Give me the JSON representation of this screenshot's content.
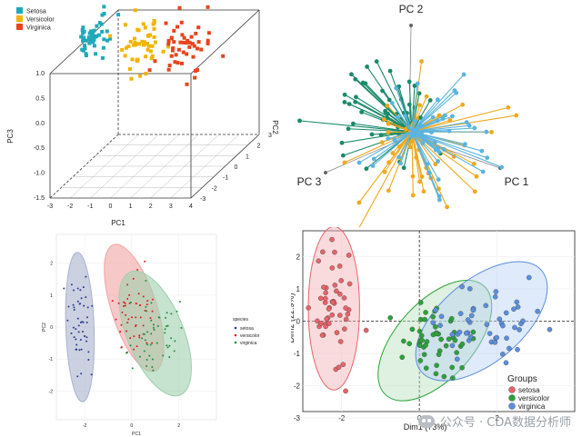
{
  "chart_data": [
    {
      "type": "scatter",
      "projection": "3d",
      "xlabel": "PC1",
      "ylabel": "PC2",
      "zlabel": "PC3",
      "x_ticks": [
        "-3",
        "-2",
        "-1",
        "0",
        "1",
        "2",
        "3",
        "4"
      ],
      "y_ticks": [
        "-3",
        "-2",
        "-1",
        "0",
        "1",
        "2",
        "3"
      ],
      "z_ticks": [
        "-1.5",
        "-1.0",
        "-0.5",
        "0.0",
        "0.5",
        "1.0"
      ],
      "xlim": [
        -3,
        4
      ],
      "ylim": [
        -3,
        3
      ],
      "zlim": [
        -1.5,
        1.0
      ],
      "legend": {
        "position": "top-left",
        "entries": [
          "Setosa",
          "Versicolor",
          "Virginica"
        ]
      },
      "colors": {
        "Setosa": "#1fa9b8",
        "Versicolor": "#f2b400",
        "Virginica": "#e8441d"
      },
      "groups": [
        {
          "name": "Setosa",
          "center": [
            -2.7,
            0.3,
            0.0
          ],
          "spread": [
            0.35,
            0.6,
            0.2
          ],
          "n": 50
        },
        {
          "name": "Versicolor",
          "center": [
            0.3,
            -0.6,
            0.1
          ],
          "spread": [
            0.5,
            0.5,
            0.25
          ],
          "n": 50
        },
        {
          "name": "Virginica",
          "center": [
            1.9,
            0.1,
            -0.2
          ],
          "spread": [
            0.6,
            0.5,
            0.3
          ],
          "n": 50
        }
      ]
    },
    {
      "type": "biplot-3d",
      "axis_labels": [
        "PC 1",
        "PC 2",
        "PC 3"
      ],
      "colors": {
        "Setosa": "#1a8a6a",
        "Versicolor": "#f0a81e",
        "Virginica": "#5ab4e0"
      },
      "groups": [
        {
          "name": "Setosa",
          "n": 50
        },
        {
          "name": "Versicolor",
          "n": 50
        },
        {
          "name": "Virginica",
          "n": 50
        }
      ]
    },
    {
      "type": "scatter",
      "xlabel": "PC1",
      "ylabel": "PC2",
      "x_ticks": [
        "-2",
        "0",
        "2"
      ],
      "y_ticks": [
        "-2",
        "-1",
        "0",
        "1",
        "2"
      ],
      "xlim": [
        -3.2,
        3.6
      ],
      "ylim": [
        -2.9,
        2.9
      ],
      "legend": {
        "title": "species",
        "position": "right",
        "entries": [
          "setosa",
          "versicolor",
          "virginica"
        ]
      },
      "colors": {
        "setosa": "#2b3a8f",
        "versicolor": "#d62020",
        "virginica": "#1f8f3a"
      },
      "ellipse_colors": {
        "setosa": "#aab3cf",
        "versicolor": "#f2a3a3",
        "virginica": "#9fd0ae"
      },
      "groups": [
        {
          "name": "setosa",
          "center": [
            -2.2,
            0.0
          ],
          "spread": [
            0.25,
            0.9
          ],
          "n": 50
        },
        {
          "name": "versicolor",
          "center": [
            0.1,
            0.6
          ],
          "spread": [
            0.4,
            0.8
          ],
          "n": 50
        },
        {
          "name": "virginica",
          "center": [
            1.0,
            -0.2
          ],
          "spread": [
            0.5,
            0.8
          ],
          "n": 50
        }
      ]
    },
    {
      "type": "scatter",
      "xlabel": "Dim1 (73%)",
      "ylabel": "Dim2 (22.9%)",
      "x_ticks": [
        "-2",
        "0",
        "2"
      ],
      "y_ticks": [
        "-3",
        "-2",
        "-1",
        "0",
        "1",
        "2"
      ],
      "xlim": [
        -3.0,
        4.0
      ],
      "ylim": [
        -2.8,
        2.8
      ],
      "legend": {
        "title": "Groups",
        "position": "bottom-right",
        "entries": [
          "setosa",
          "versicolor",
          "virginica"
        ]
      },
      "colors": {
        "setosa": "#e8636a",
        "versicolor": "#2aa33a",
        "virginica": "#5a8fe0"
      },
      "groups": [
        {
          "name": "setosa",
          "center": [
            -2.2,
            0.4
          ],
          "spread": [
            0.3,
            1.1
          ],
          "n": 50
        },
        {
          "name": "versicolor",
          "center": [
            0.4,
            -0.6
          ],
          "spread": [
            0.7,
            0.7
          ],
          "n": 50
        },
        {
          "name": "virginica",
          "center": [
            1.6,
            0.0
          ],
          "spread": [
            0.75,
            0.75
          ],
          "n": 50
        }
      ]
    }
  ],
  "watermark": {
    "text": "公众号 · CDA数据分析师"
  }
}
